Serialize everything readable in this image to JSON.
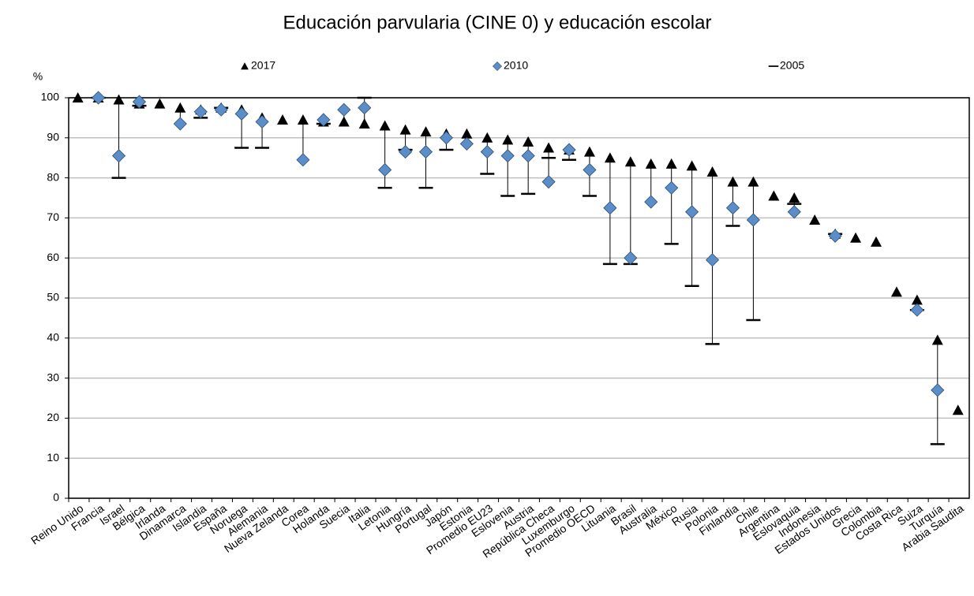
{
  "chart_data": {
    "type": "dot-range",
    "title": "Educación parvularia (CINE 0) y educación escolar",
    "y_label": "%",
    "categories": [
      "Reino Unido",
      "Francia",
      "Israel",
      "Bélgica",
      "Irlanda",
      "Dinamarca",
      "Islandia",
      "España",
      "Noruega",
      "Alemania",
      "Nueva Zelanda",
      "Corea",
      "Holanda",
      "Suecia",
      "Italia",
      "Letonia",
      "Hungría",
      "Portugal",
      "Japón",
      "Estonia",
      "Promedio EU23",
      "Eslovenia",
      "Austria",
      "República Checa",
      "Luxemburgo",
      "Promedio OECD",
      "Lituania",
      "Brasil",
      "Australia",
      "México",
      "Rusia",
      "Polonia",
      "Finlandia",
      "Chile",
      "Argentina",
      "Eslovaquia",
      "Indonesia",
      "Estados Unidos",
      "Grecia",
      "Colombia",
      "Costa Rica",
      "Suiza",
      "Turquía",
      "Arabia Saudita"
    ],
    "series": [
      {
        "name": "2017",
        "marker": "triangle",
        "color": "#000000",
        "values": [
          100,
          100,
          99.5,
          98.5,
          98.5,
          97.5,
          97,
          97.5,
          97,
          95,
          94.5,
          94.5,
          94,
          94,
          93.5,
          93,
          92,
          91.5,
          91,
          91,
          90,
          89.5,
          89,
          87.5,
          87,
          86.5,
          85,
          84,
          83.5,
          83.5,
          83,
          81.5,
          79,
          79,
          75.5,
          75,
          69.5,
          66,
          65,
          64,
          51.5,
          49.5,
          39.5,
          22
        ]
      },
      {
        "name": "2010",
        "marker": "diamond",
        "color": "#5b8ec9",
        "values": [
          null,
          100,
          85.5,
          99,
          null,
          93.5,
          96.5,
          97,
          96,
          94,
          null,
          84.5,
          94.5,
          97,
          97.5,
          82,
          86.5,
          86.5,
          90,
          88.5,
          86.5,
          85.5,
          85.5,
          79,
          87,
          82,
          72.5,
          60,
          74,
          77.5,
          71.5,
          59.5,
          72.5,
          69.5,
          null,
          71.5,
          null,
          65.5,
          null,
          null,
          null,
          47,
          27,
          null
        ]
      },
      {
        "name": "2005",
        "marker": "dash",
        "color": "#000000",
        "values": [
          null,
          100,
          80,
          98,
          null,
          null,
          95,
          97.5,
          87.5,
          87.5,
          null,
          null,
          93.5,
          null,
          100,
          77.5,
          87,
          77.5,
          87,
          null,
          81,
          75.5,
          76,
          85,
          84.5,
          75.5,
          58.5,
          58.5,
          null,
          63.5,
          53,
          38.5,
          68,
          44.5,
          null,
          73.5,
          null,
          66,
          null,
          null,
          null,
          47,
          13.5,
          null
        ]
      }
    ],
    "ylim": [
      0,
      100
    ],
    "yticks": [
      0,
      10,
      20,
      30,
      40,
      50,
      60,
      70,
      80,
      90,
      100
    ],
    "grid": true
  }
}
